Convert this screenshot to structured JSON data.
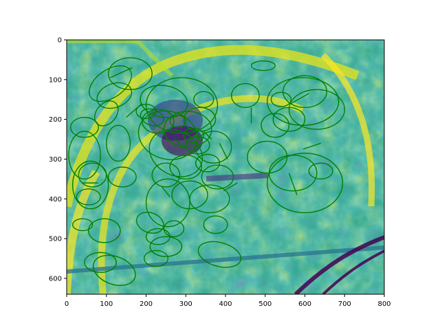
{
  "chart_data": {
    "type": "image",
    "title": "",
    "xlabel": "",
    "ylabel": "",
    "xlim": [
      0,
      800
    ],
    "ylim": [
      640,
      0
    ],
    "x_ticks": [
      0,
      100,
      200,
      300,
      400,
      500,
      600,
      700,
      800
    ],
    "y_ticks": [
      0,
      100,
      200,
      300,
      400,
      500,
      600
    ],
    "colormap": "viridis",
    "overlay_color": "#008000",
    "overlay": "ellipse feature detections",
    "ellipses": [
      [
        110,
        110,
        60,
        35,
        -35
      ],
      [
        160,
        85,
        55,
        40,
        0
      ],
      [
        120,
        140,
        45,
        30,
        -20
      ],
      [
        100,
        185,
        35,
        25,
        -50
      ],
      [
        245,
        155,
        60,
        40,
        10
      ],
      [
        290,
        165,
        90,
        70,
        0
      ],
      [
        230,
        205,
        40,
        30,
        0
      ],
      [
        215,
        195,
        30,
        20,
        20
      ],
      [
        200,
        180,
        25,
        18,
        0
      ],
      [
        255,
        240,
        75,
        60,
        15
      ],
      [
        305,
        225,
        60,
        45,
        0
      ],
      [
        275,
        285,
        70,
        55,
        30
      ],
      [
        335,
        200,
        40,
        30,
        0
      ],
      [
        345,
        150,
        25,
        20,
        0
      ],
      [
        330,
        265,
        30,
        22,
        0
      ],
      [
        370,
        270,
        45,
        40,
        0
      ],
      [
        300,
        320,
        40,
        30,
        0
      ],
      [
        250,
        340,
        35,
        30,
        0
      ],
      [
        380,
        345,
        40,
        30,
        0
      ],
      [
        360,
        400,
        50,
        35,
        0
      ],
      [
        255,
        410,
        55,
        60,
        0
      ],
      [
        310,
        390,
        45,
        35,
        0
      ],
      [
        595,
        155,
        90,
        60,
        0
      ],
      [
        630,
        175,
        70,
        50,
        0
      ],
      [
        600,
        130,
        55,
        40,
        0
      ],
      [
        560,
        200,
        40,
        30,
        0
      ],
      [
        525,
        215,
        35,
        30,
        0
      ],
      [
        505,
        295,
        50,
        40,
        0
      ],
      [
        570,
        335,
        60,
        45,
        0
      ],
      [
        600,
        360,
        95,
        75,
        0
      ],
      [
        640,
        330,
        30,
        20,
        0
      ],
      [
        495,
        65,
        30,
        12,
        0
      ],
      [
        540,
        150,
        25,
        18,
        0
      ],
      [
        60,
        365,
        45,
        60,
        0
      ],
      [
        65,
        340,
        35,
        30,
        0
      ],
      [
        55,
        395,
        30,
        20,
        0
      ],
      [
        40,
        465,
        25,
        15,
        0
      ],
      [
        95,
        480,
        40,
        30,
        0
      ],
      [
        210,
        460,
        35,
        25,
        20
      ],
      [
        230,
        495,
        30,
        20,
        0
      ],
      [
        270,
        475,
        25,
        20,
        0
      ],
      [
        250,
        520,
        40,
        25,
        0
      ],
      [
        375,
        465,
        30,
        22,
        0
      ],
      [
        385,
        540,
        55,
        30,
        15
      ],
      [
        120,
        580,
        55,
        35,
        20
      ],
      [
        85,
        560,
        40,
        25,
        0
      ],
      [
        225,
        550,
        30,
        20,
        0
      ],
      [
        45,
        220,
        35,
        25,
        0
      ],
      [
        45,
        290,
        40,
        60,
        0
      ],
      [
        280,
        205,
        20,
        15,
        0
      ],
      [
        320,
        240,
        25,
        18,
        0
      ],
      [
        355,
        310,
        30,
        22,
        0
      ],
      [
        140,
        345,
        35,
        25,
        0
      ],
      [
        130,
        260,
        30,
        45,
        0
      ],
      [
        450,
        140,
        35,
        30,
        0
      ]
    ],
    "segments": [
      [
        110,
        95,
        165,
        70
      ],
      [
        150,
        195,
        190,
        160
      ],
      [
        465,
        170,
        465,
        210
      ],
      [
        565,
        160,
        610,
        135
      ],
      [
        595,
        275,
        640,
        260
      ],
      [
        560,
        335,
        580,
        390
      ],
      [
        395,
        380,
        430,
        360
      ],
      [
        240,
        370,
        260,
        395
      ],
      [
        270,
        250,
        300,
        270
      ],
      [
        345,
        230,
        365,
        250
      ],
      [
        40,
        360,
        80,
        360
      ],
      [
        385,
        260,
        405,
        300
      ]
    ]
  }
}
